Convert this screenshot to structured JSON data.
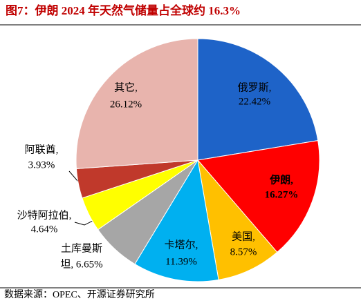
{
  "title": "图7：伊朗 2024 年天然气储量占全球约 16.3%",
  "source": "数据来源：OPEC、开源证券研究所",
  "chart_data": {
    "type": "pie",
    "categories": [
      "俄罗斯,",
      "伊朗,",
      "美国,",
      "卡塔尔,",
      "土库曼斯",
      "沙特阿拉伯,",
      "阿联酋,",
      "其它,"
    ],
    "values": [
      22.42,
      16.27,
      8.57,
      11.39,
      6.65,
      4.64,
      3.93,
      26.12
    ],
    "value_labels": [
      "22.42%",
      "16.27%",
      "8.57%",
      "11.39%",
      "坦, 6.65%",
      "4.64%",
      "3.93%",
      "26.12%"
    ],
    "colors": [
      "#1e63c8",
      "#ff0000",
      "#ffc000",
      "#00b0f0",
      "#a6a6a6",
      "#ffff00",
      "#c0392b",
      "#e8b4ad"
    ]
  }
}
